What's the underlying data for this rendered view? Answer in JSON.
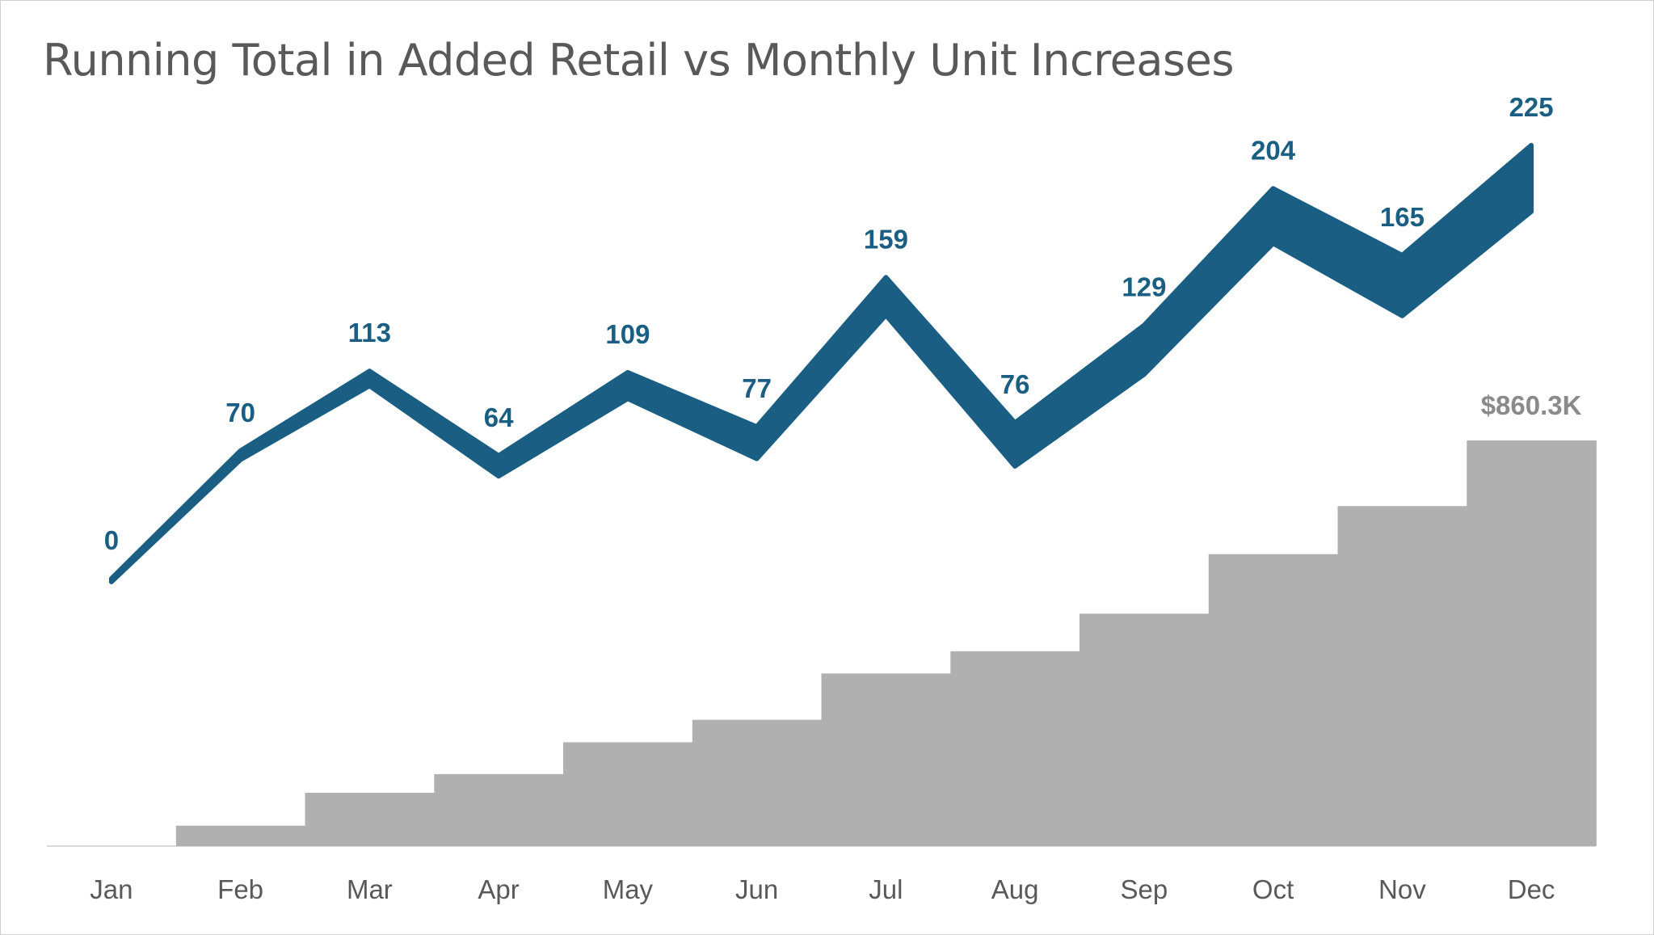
{
  "chart_data": {
    "type": "line",
    "title": "Running Total in Added Retail vs Monthly Unit Increases",
    "categories": [
      "Jan",
      "Feb",
      "Mar",
      "Apr",
      "May",
      "Jun",
      "Jul",
      "Aug",
      "Sep",
      "Oct",
      "Nov",
      "Dec"
    ],
    "series": [
      {
        "values": [
          0,
          70,
          113,
          64,
          109,
          77,
          159,
          76,
          129,
          204,
          165,
          225
        ],
        "chart_type": "line",
        "color": "#1a5f83"
      },
      {
        "values": [
          0,
          70,
          183,
          247,
          356,
          433,
          592,
          668,
          797,
          1001,
          1166,
          1391
        ],
        "chart_type": "step-area",
        "color": "#b0b0b0",
        "last_value_label": "$860.3K"
      }
    ],
    "legend": "none",
    "grid": false
  }
}
